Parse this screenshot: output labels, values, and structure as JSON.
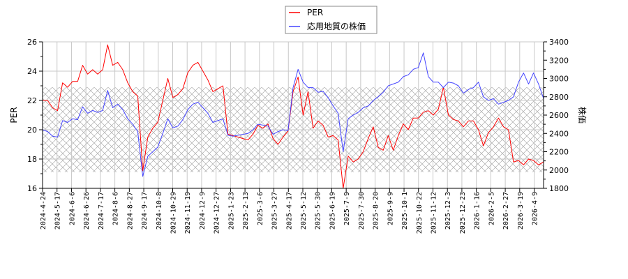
{
  "chart_data": {
    "type": "line",
    "title": "",
    "legend": {
      "position": "top-center",
      "entries": [
        {
          "name": "PER",
          "color": "#ff0000"
        },
        {
          "name": "応用地質の株価",
          "color": "#4444ff"
        }
      ]
    },
    "xlabel": "",
    "ylabel_left": "PER",
    "ylabel_right": "株価",
    "ylim_left": [
      16,
      26
    ],
    "ylim_right": [
      1800,
      3400
    ],
    "yticks_left": [
      16,
      18,
      20,
      22,
      24,
      26
    ],
    "yticks_right": [
      1800,
      2000,
      2200,
      2400,
      2600,
      2800,
      3000,
      3200,
      3400
    ],
    "x_tick_labels": [
      "2024-4-24",
      "2024-5-17",
      "2024-6-6",
      "2024-6-26",
      "2024-7-17",
      "2024-8-6",
      "2024-8-27",
      "2024-9-17",
      "2024-10-8",
      "2024-10-29",
      "2024-11-19",
      "2024-12-9",
      "2024-12-27",
      "2025-1-23",
      "2025-2-13",
      "2025-3-6",
      "2025-3-27",
      "2025-4-17",
      "2025-5-12",
      "2025-5-30",
      "2025-6-19",
      "2025-7-9",
      "2025-7-30",
      "2025-8-20",
      "2025-9-9",
      "2025-10-1",
      "2025-10-22",
      "2025-11-12",
      "2025-12-3",
      "2025-12-23",
      "2026-1-16",
      "2026-2-5",
      "2026-2-27",
      "2026-3-19",
      "2026-4-9"
    ],
    "grid": true,
    "hatched_band_per": [
      17.1,
      22.9
    ],
    "series": [
      {
        "name": "PER",
        "axis": "left",
        "color": "#ff0000",
        "x_index": [
          0,
          2,
          4,
          6,
          8,
          10,
          12,
          14,
          16,
          18,
          20,
          22,
          24,
          26,
          28,
          30,
          32,
          34,
          36,
          38,
          40,
          42,
          44,
          46,
          48,
          50,
          52,
          54,
          56,
          58,
          60,
          62,
          64,
          66,
          68,
          70,
          72,
          74,
          76,
          78,
          80,
          82,
          84,
          86,
          88,
          90,
          92,
          94,
          96,
          98,
          100,
          102,
          104,
          106,
          108,
          110,
          112,
          114,
          116,
          118,
          120,
          122,
          124,
          126,
          128,
          130,
          132,
          134,
          136,
          138,
          140,
          142,
          144,
          146,
          148,
          150,
          152,
          154,
          156,
          158,
          160,
          162,
          164,
          166,
          168,
          170,
          172,
          174,
          176,
          178,
          180,
          182,
          184,
          186,
          188,
          190,
          192,
          194,
          196,
          198,
          200
        ],
        "values": [
          22.0,
          22.0,
          21.5,
          21.3,
          23.2,
          22.9,
          23.3,
          23.3,
          24.4,
          23.8,
          24.1,
          23.8,
          24.1,
          25.8,
          24.4,
          24.6,
          24.1,
          23.2,
          22.6,
          22.3,
          17.2,
          19.5,
          20.1,
          20.5,
          22.0,
          23.5,
          22.2,
          22.4,
          22.8,
          23.9,
          24.4,
          24.6,
          24.0,
          23.4,
          22.6,
          22.8,
          23.0,
          19.7,
          19.6,
          19.5,
          19.4,
          19.3,
          19.7,
          20.3,
          20.1,
          20.4,
          19.4,
          19.0,
          19.5,
          19.9,
          22.6,
          23.6,
          21.0,
          22.6,
          20.1,
          20.6,
          20.3,
          19.5,
          19.6,
          19.3,
          16.0,
          18.2,
          17.8,
          18.0,
          18.5,
          19.4,
          20.2,
          18.8,
          18.6,
          19.6,
          18.6,
          19.6,
          20.4,
          20.0,
          20.8,
          20.8,
          21.2,
          21.3,
          21.0,
          21.4,
          22.9,
          21.0,
          20.7,
          20.6,
          20.2,
          20.6,
          20.6,
          20.0,
          18.9,
          19.8,
          20.2,
          20.8,
          20.2,
          20.0,
          17.8,
          17.9,
          17.6,
          18.0,
          17.9,
          17.6,
          17.8
        ]
      },
      {
        "name": "応用地質の株価",
        "axis": "right",
        "color": "#4444ff",
        "x_index": [
          0,
          2,
          4,
          6,
          8,
          10,
          12,
          14,
          16,
          18,
          20,
          22,
          24,
          26,
          28,
          30,
          32,
          34,
          36,
          38,
          40,
          42,
          44,
          46,
          48,
          50,
          52,
          54,
          56,
          58,
          60,
          62,
          64,
          66,
          68,
          70,
          72,
          74,
          76,
          78,
          80,
          82,
          84,
          86,
          88,
          90,
          92,
          94,
          96,
          98,
          100,
          102,
          104,
          106,
          108,
          110,
          112,
          114,
          116,
          118,
          120,
          122,
          124,
          126,
          128,
          130,
          132,
          134,
          136,
          138,
          140,
          142,
          144,
          146,
          148,
          150,
          152,
          154,
          156,
          158,
          160,
          162,
          164,
          166,
          168,
          170,
          172,
          174,
          176,
          178,
          180,
          182,
          184,
          186,
          188,
          190,
          192,
          194,
          196,
          198,
          200
        ],
        "values": [
          2440,
          2420,
          2370,
          2360,
          2540,
          2520,
          2560,
          2550,
          2690,
          2620,
          2650,
          2630,
          2650,
          2870,
          2680,
          2720,
          2660,
          2560,
          2500,
          2420,
          1930,
          2150,
          2200,
          2250,
          2400,
          2560,
          2460,
          2480,
          2550,
          2660,
          2720,
          2740,
          2680,
          2620,
          2520,
          2540,
          2560,
          2380,
          2370,
          2380,
          2390,
          2400,
          2440,
          2500,
          2490,
          2480,
          2390,
          2420,
          2440,
          2430,
          2900,
          3100,
          2960,
          2900,
          2900,
          2850,
          2860,
          2790,
          2700,
          2620,
          2200,
          2560,
          2600,
          2630,
          2680,
          2700,
          2760,
          2800,
          2850,
          2920,
          2940,
          2960,
          3020,
          3040,
          3100,
          3120,
          3280,
          3020,
          2960,
          2960,
          2900,
          2960,
          2950,
          2920,
          2840,
          2880,
          2900,
          2960,
          2800,
          2760,
          2780,
          2720,
          2740,
          2760,
          2800,
          2960,
          3060,
          2940,
          3060,
          2940,
          2780
        ]
      }
    ]
  }
}
